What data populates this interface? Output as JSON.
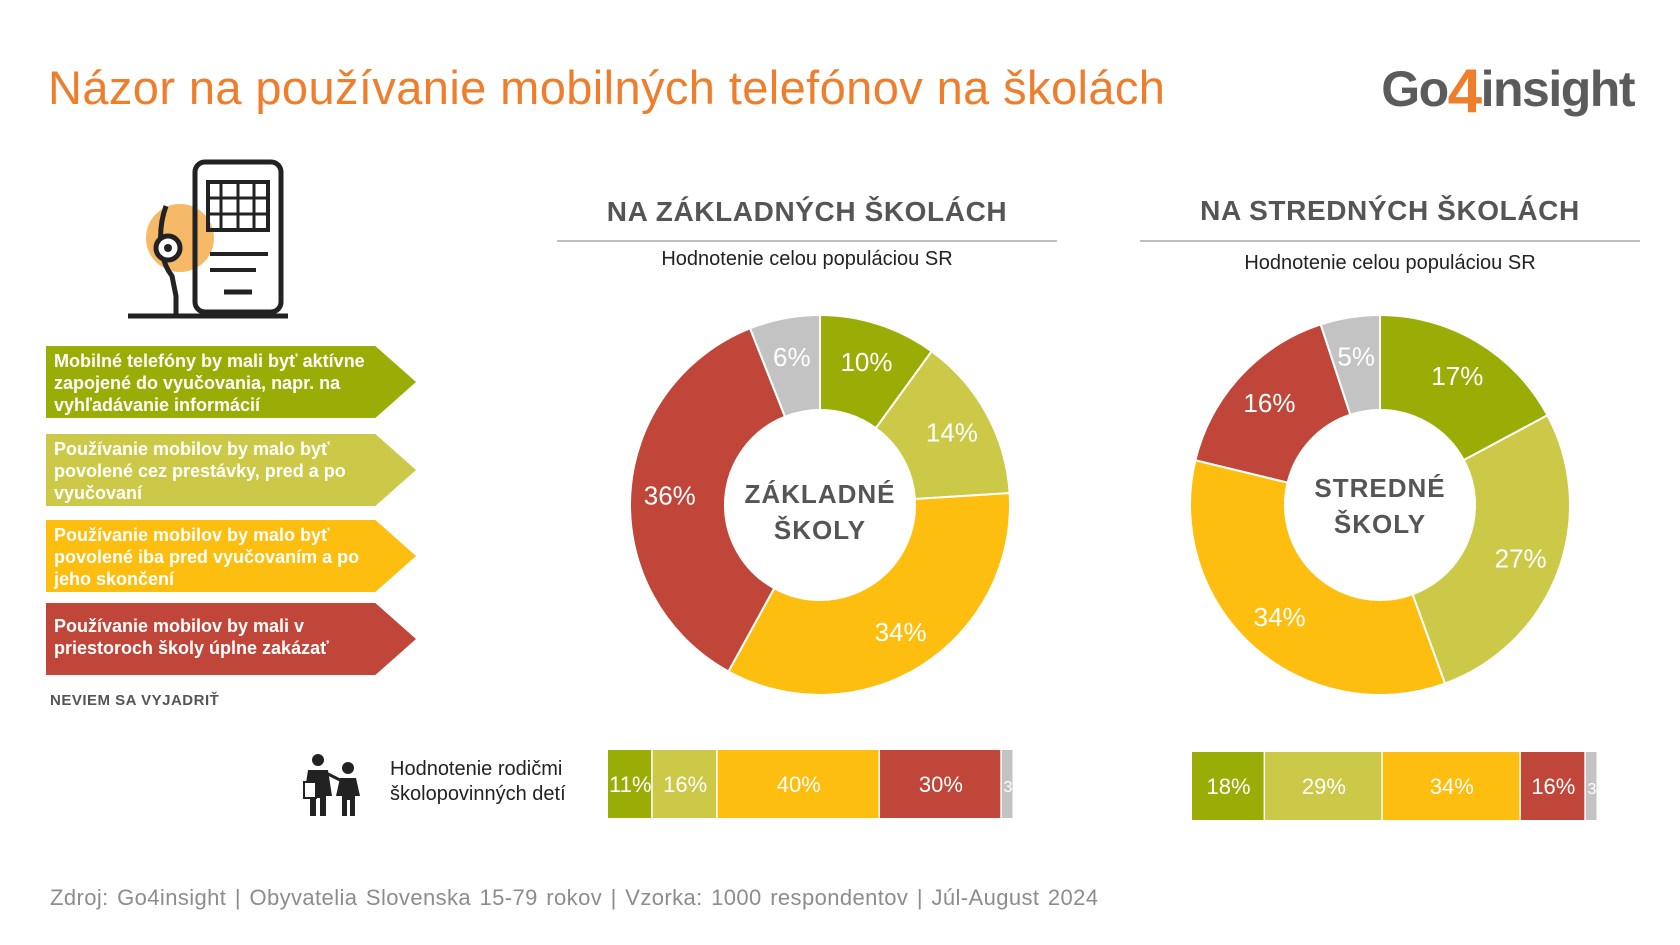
{
  "title": "Názor na používanie mobilných telefónov na školách",
  "logo": {
    "prefix": "Go",
    "digit": "4",
    "suffix": "insight"
  },
  "legend": [
    {
      "label": "Mobilné telefóny by mali byť aktívne zapojené do vyučovania, napr. na vyhľadávanie informácií",
      "color": "#9aad06"
    },
    {
      "label": "Používanie mobilov  by malo byť povolené cez prestávky, pred a po vyučovaní",
      "color": "#ccc948"
    },
    {
      "label": "Používanie mobilov by malo byť povolené iba pred vyučovaním a po jeho skončení",
      "color": "#fdbe0f"
    },
    {
      "label": "Používanie mobilov by mali v priestoroch školy úplne zakázať",
      "color": "#c0463a"
    }
  ],
  "legend_dont_know": "NEVIEM SA VYJADRIŤ",
  "parents_label_line1": "Hodnotenie rodičmi",
  "parents_label_line2": "školopovinných detí",
  "source": "Zdroj:  Go4insight | Obyvatelia  Slovenska  15-79 rokov  | Vzorka: 1000 respondentov  | Júl-August  2024",
  "icons": {
    "phone": "smartphone-head-icon",
    "parents": "parent-child-icon"
  },
  "colors": {
    "title": "#ee7d2c",
    "active": "#9aad06",
    "breaks": "#ccc948",
    "before_after": "#fdbe0f",
    "ban": "#c0463a",
    "dont_know": "#c3c3c3"
  },
  "sections": [
    {
      "heading": "NA ZÁKLADNÝCH ŠKOLÁCH",
      "subtitle": "Hodnotenie celou populáciou SR"
    },
    {
      "heading": "NA STREDNÝCH ŠKOLÁCH",
      "subtitle": "Hodnotenie celou populáciou SR"
    }
  ],
  "chart_data": [
    {
      "type": "pie",
      "donut": true,
      "center_label": [
        "ZÁKLADNÉ",
        "ŠKOLY"
      ],
      "categories": [
        "Aktívne zapojené",
        "Cez prestávky, pred a po",
        "Iba pred a po",
        "Úplne zakázať",
        "Neviem sa vyjadriť"
      ],
      "values": [
        10,
        14,
        34,
        36,
        6
      ],
      "labels": [
        "10%",
        "14%",
        "34%",
        "36%",
        "6%"
      ]
    },
    {
      "type": "pie",
      "donut": true,
      "center_label": [
        "STREDNÉ",
        "ŠKOLY"
      ],
      "categories": [
        "Aktívne zapojené",
        "Cez prestávky, pred a po",
        "Iba pred a po",
        "Úplne zakázať",
        "Neviem sa vyjadriť"
      ],
      "values": [
        17,
        27,
        34,
        16,
        5
      ],
      "labels": [
        "17%",
        "27%",
        "34%",
        "16%",
        "5%"
      ]
    },
    {
      "type": "bar",
      "stacked": true,
      "orientation": "horizontal",
      "categories": [
        "Aktívne zapojené",
        "Cez prestávky, pred a po",
        "Iba pred a po",
        "Úplne zakázať",
        "Neviem sa vyjadriť"
      ],
      "values": [
        11,
        16,
        40,
        30,
        3
      ],
      "labels": [
        "11%",
        "16%",
        "40%",
        "30%",
        "3"
      ]
    },
    {
      "type": "bar",
      "stacked": true,
      "orientation": "horizontal",
      "categories": [
        "Aktívne zapojené",
        "Cez prestávky, pred a po",
        "Iba pred a po",
        "Úplne zakázať",
        "Neviem sa vyjadriť"
      ],
      "values": [
        18,
        29,
        34,
        16,
        3
      ],
      "labels": [
        "18%",
        "29%",
        "34%",
        "16%",
        "3"
      ]
    }
  ]
}
